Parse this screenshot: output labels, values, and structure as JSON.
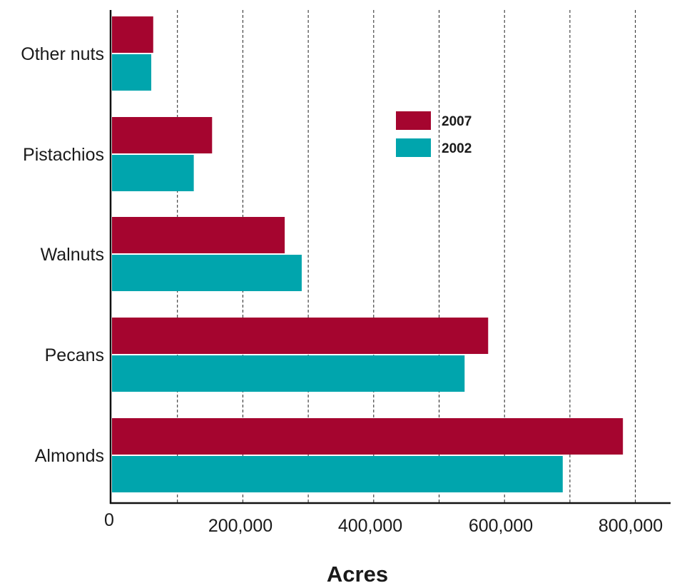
{
  "chart_data": {
    "type": "bar",
    "orientation": "horizontal",
    "categories": [
      "Other nuts",
      "Pistachios",
      "Walnuts",
      "Pecans",
      "Almonds"
    ],
    "series": [
      {
        "name": "2007",
        "color": "#a5052f",
        "values": [
          63000,
          153000,
          264000,
          575000,
          781000
        ]
      },
      {
        "name": "2002",
        "color": "#00a5ad",
        "values": [
          60000,
          125000,
          290000,
          539000,
          689000
        ]
      }
    ],
    "title": "",
    "xlabel": "Acres",
    "ylabel": "",
    "xlim": [
      0,
      850000
    ],
    "xticks": [
      {
        "value": 0,
        "label": "0"
      },
      {
        "value": 200000,
        "label": "200,000"
      },
      {
        "value": 400000,
        "label": "400,000"
      },
      {
        "value": 600000,
        "label": "600,000"
      },
      {
        "value": 800000,
        "label": "800,000"
      }
    ],
    "gridlines": [
      100000,
      200000,
      300000,
      400000,
      500000,
      600000,
      700000,
      800000
    ],
    "grid": true,
    "legend": {
      "placement": "upper-right",
      "entries": [
        "2007",
        "2002"
      ]
    }
  }
}
